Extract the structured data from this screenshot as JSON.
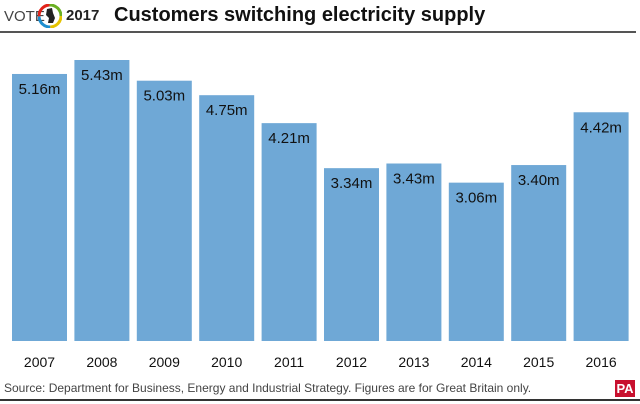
{
  "header": {
    "vote_label": "VOTE",
    "year_label": "2017",
    "title": "Customers switching electricity supply"
  },
  "footer": {
    "source": "Source: Department for Business, Energy and Industrial Strategy. Figures are for Great Britain only.",
    "brand": "PA"
  },
  "colors": {
    "bar": "#6fa8d6",
    "brand": "#c8102e"
  },
  "chart_data": {
    "type": "bar",
    "categories": [
      "2007",
      "2008",
      "2009",
      "2010",
      "2011",
      "2012",
      "2013",
      "2014",
      "2015",
      "2016"
    ],
    "values": [
      5.16,
      5.43,
      5.03,
      4.75,
      4.21,
      3.34,
      3.43,
      3.06,
      3.4,
      4.42
    ],
    "data_labels": [
      "5.16m",
      "5.43m",
      "5.03m",
      "4.75m",
      "4.21m",
      "3.34m",
      "3.43m",
      "3.06m",
      "3.40m",
      "4.42m"
    ],
    "title": "Customers switching electricity supply",
    "xlabel": "",
    "ylabel": "",
    "ylim": [
      0,
      5.43
    ],
    "grid": false
  }
}
